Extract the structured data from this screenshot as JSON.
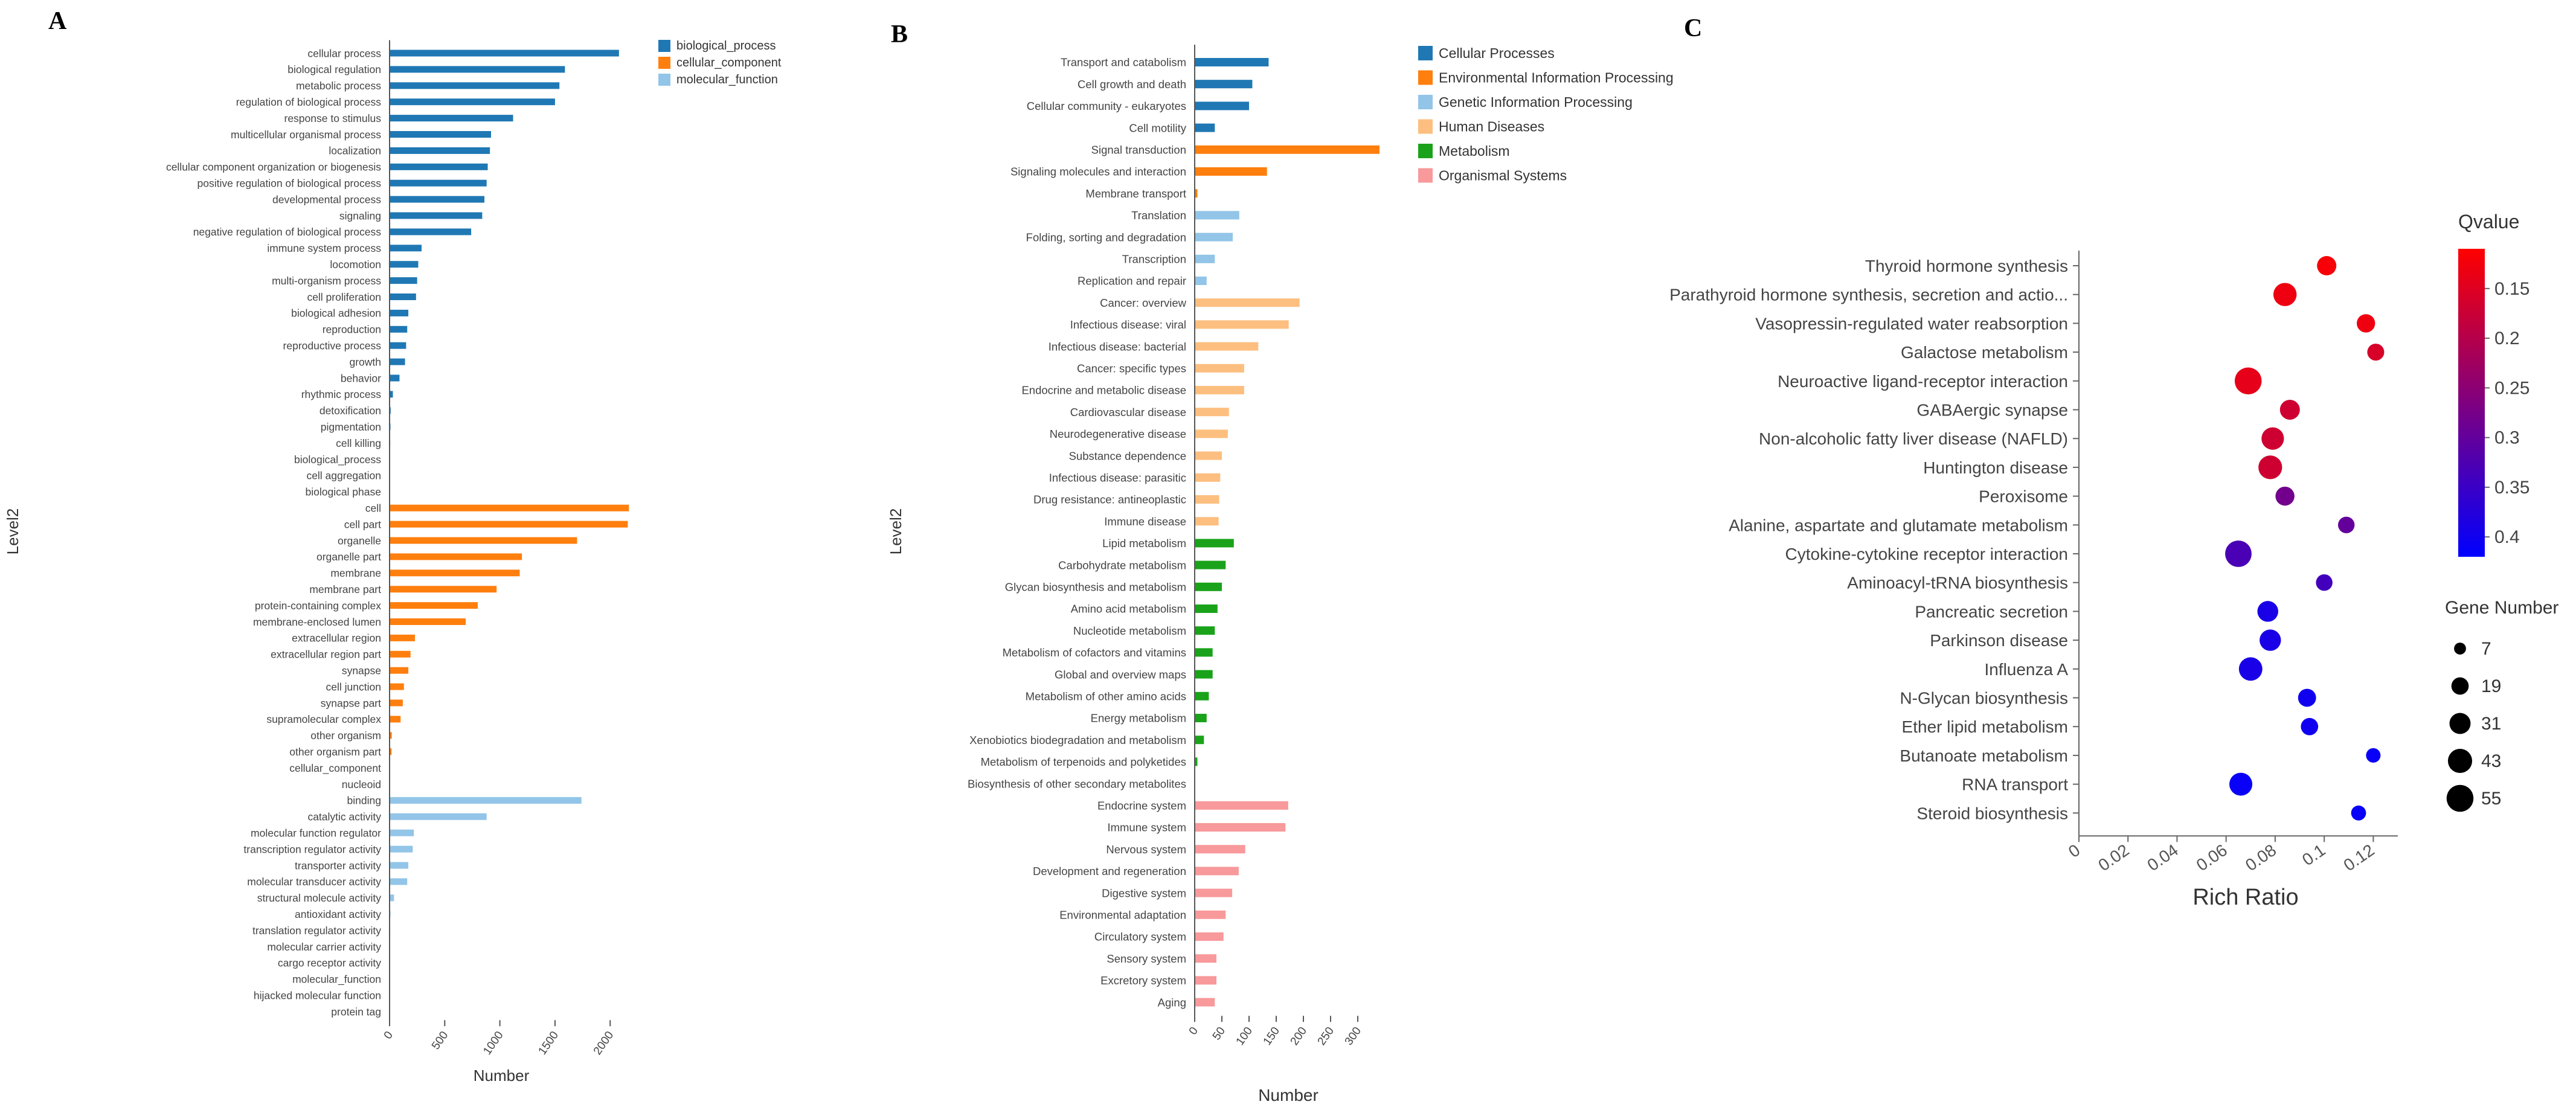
{
  "panels": {
    "A": {
      "letter": "A",
      "ylabel": "Level2",
      "xlabel": "Number",
      "xlim": [
        0,
        2300
      ],
      "ticks": [
        0,
        500,
        1000,
        1500,
        2000
      ],
      "legend": [
        {
          "name": "biological_process",
          "color": "#1f78b4"
        },
        {
          "name": "cellular_component",
          "color": "#ff7f0e"
        },
        {
          "name": "molecular_function",
          "color": "#92c5e8"
        }
      ]
    },
    "B": {
      "letter": "B",
      "ylabel": "Level2",
      "xlabel": "Number",
      "xlim": [
        0,
        340
      ],
      "ticks": [
        0,
        50,
        100,
        150,
        200,
        250,
        300
      ],
      "legend": [
        {
          "name": "Cellular Processes",
          "color": "#1f78b4"
        },
        {
          "name": "Environmental Information Processing",
          "color": "#ff7f0e"
        },
        {
          "name": "Genetic Information Processing",
          "color": "#92c5e8"
        },
        {
          "name": "Human Diseases",
          "color": "#fdbf7f"
        },
        {
          "name": "Metabolism",
          "color": "#1aa31a"
        },
        {
          "name": "Organismal Systems",
          "color": "#f8999b"
        }
      ]
    },
    "C": {
      "letter": "C",
      "xlabel": "Rich Ratio",
      "xlim": [
        0,
        0.13
      ],
      "ticks": [
        0,
        0.02,
        0.04,
        0.06,
        0.08,
        0.1,
        0.12
      ],
      "qvalue_title": "Qvalue",
      "qvalue_ticks": [
        0.15,
        0.2,
        0.25,
        0.3,
        0.35,
        0.4
      ],
      "qvalue_range": [
        0.11,
        0.42
      ],
      "colors": {
        "low": "#ff0000",
        "high": "#0000ff"
      },
      "gene_title": "Gene Number",
      "gene_sizes": [
        7,
        19,
        31,
        43,
        55
      ]
    }
  },
  "chart_data": [
    {
      "type": "bar",
      "orientation": "horizontal",
      "title": "",
      "xlabel": "Number",
      "ylabel": "Level2",
      "xlim": [
        0,
        2300
      ],
      "series": [
        {
          "name": "biological_process",
          "categories": [
            "cellular process",
            "biological regulation",
            "metabolic process",
            "regulation of biological process",
            "response to stimulus",
            "multicellular organismal process",
            "localization",
            "cellular component organization or biogenesis",
            "positive regulation of biological process",
            "developmental process",
            "signaling",
            "negative regulation of biological process",
            "immune system process",
            "locomotion",
            "multi-organism process",
            "cell proliferation",
            "biological adhesion",
            "reproduction",
            "reproductive process",
            "growth",
            "behavior",
            "rhythmic process",
            "detoxification",
            "pigmentation",
            "cell killing",
            "biological_process",
            "cell aggregation",
            "biological phase"
          ],
          "values": [
            2080,
            1590,
            1540,
            1500,
            1120,
            920,
            910,
            890,
            880,
            860,
            840,
            740,
            290,
            260,
            250,
            240,
            170,
            160,
            150,
            140,
            90,
            30,
            10,
            8,
            6,
            5,
            4,
            3
          ]
        },
        {
          "name": "cellular_component",
          "categories": [
            "cell",
            "cell part",
            "organelle",
            "organelle part",
            "membrane",
            "membrane part",
            "protein-containing complex",
            "membrane-enclosed lumen",
            "extracellular region",
            "extracellular region part",
            "synapse",
            "cell junction",
            "synapse part",
            "supramolecular complex",
            "other organism",
            "other organism part",
            "cellular_component",
            "nucleoid"
          ],
          "values": [
            2170,
            2160,
            1700,
            1200,
            1180,
            970,
            800,
            690,
            230,
            190,
            170,
            130,
            120,
            100,
            20,
            18,
            5,
            3
          ]
        },
        {
          "name": "molecular_function",
          "categories": [
            "binding",
            "catalytic activity",
            "molecular function regulator",
            "transcription regulator activity",
            "transporter activity",
            "molecular transducer activity",
            "structural molecule activity",
            "antioxidant activity",
            "translation regulator activity",
            "molecular carrier activity",
            "cargo receptor activity",
            "molecular_function",
            "hijacked molecular function",
            "protein tag"
          ],
          "values": [
            1740,
            880,
            220,
            210,
            170,
            160,
            40,
            8,
            6,
            5,
            4,
            3,
            2,
            2
          ]
        }
      ]
    },
    {
      "type": "bar",
      "orientation": "horizontal",
      "title": "",
      "xlabel": "Number",
      "ylabel": "Level2",
      "xlim": [
        0,
        340
      ],
      "series": [
        {
          "name": "Cellular Processes",
          "categories": [
            "Transport and catabolism",
            "Cell growth and death",
            "Cellular community - eukaryotes",
            "Cell motility"
          ],
          "values": [
            136,
            106,
            100,
            37
          ]
        },
        {
          "name": "Environmental Information Processing",
          "categories": [
            "Signal transduction",
            "Signaling molecules and interaction",
            "Membrane transport"
          ],
          "values": [
            340,
            133,
            5
          ]
        },
        {
          "name": "Genetic Information Processing",
          "categories": [
            "Translation",
            "Folding, sorting and degradation",
            "Transcription",
            "Replication and repair"
          ],
          "values": [
            82,
            70,
            37,
            22
          ]
        },
        {
          "name": "Human Diseases",
          "categories": [
            "Cancer: overview",
            "Infectious disease: viral",
            "Infectious disease: bacterial",
            "Cancer: specific types",
            "Endocrine and metabolic disease",
            "Cardiovascular disease",
            "Neurodegenerative disease",
            "Substance dependence",
            "Infectious disease: parasitic",
            "Drug resistance: antineoplastic",
            "Immune disease"
          ],
          "values": [
            193,
            173,
            117,
            91,
            91,
            63,
            61,
            50,
            47,
            45,
            44
          ]
        },
        {
          "name": "Metabolism",
          "categories": [
            "Lipid metabolism",
            "Carbohydrate metabolism",
            "Glycan biosynthesis and metabolism",
            "Amino acid metabolism",
            "Nucleotide metabolism",
            "Metabolism of cofactors and vitamins",
            "Global and overview maps",
            "Metabolism of other amino acids",
            "Energy metabolism",
            "Xenobiotics biodegradation and metabolism",
            "Metabolism of terpenoids and polyketides",
            "Biosynthesis of other secondary metabolites"
          ],
          "values": [
            72,
            57,
            50,
            42,
            37,
            33,
            33,
            26,
            22,
            17,
            5,
            1
          ]
        },
        {
          "name": "Organismal Systems",
          "categories": [
            "Endocrine system",
            "Immune system",
            "Nervous system",
            "Development and regeneration",
            "Digestive system",
            "Environmental adaptation",
            "Circulatory system",
            "Sensory system",
            "Excretory system",
            "Aging"
          ],
          "values": [
            172,
            167,
            93,
            81,
            69,
            57,
            53,
            40,
            40,
            37
          ]
        }
      ]
    },
    {
      "type": "scatter",
      "title": "",
      "xlabel": "Rich Ratio",
      "ylabel": "",
      "xlim": [
        0,
        0.13
      ],
      "size_legend": "Gene Number",
      "color_legend": "Qvalue",
      "points": [
        {
          "term": "Thyroid hormone synthesis",
          "rich": 0.101,
          "q": 0.12,
          "genes": 25
        },
        {
          "term": "Parathyroid hormone synthesis, secretion and actio...",
          "rich": 0.084,
          "q": 0.13,
          "genes": 39
        },
        {
          "term": "Vasopressin-regulated water reabsorption",
          "rich": 0.117,
          "q": 0.13,
          "genes": 22
        },
        {
          "term": "Galactose metabolism",
          "rich": 0.121,
          "q": 0.16,
          "genes": 18
        },
        {
          "term": "Neuroactive ligand-receptor interaction",
          "rich": 0.069,
          "q": 0.14,
          "genes": 55
        },
        {
          "term": "GABAergic synapse",
          "rich": 0.086,
          "q": 0.17,
          "genes": 27
        },
        {
          "term": "Non-alcoholic fatty liver disease (NAFLD)",
          "rich": 0.079,
          "q": 0.17,
          "genes": 36
        },
        {
          "term": "Huntington disease",
          "rich": 0.078,
          "q": 0.17,
          "genes": 41
        },
        {
          "term": "Peroxisome",
          "rich": 0.084,
          "q": 0.28,
          "genes": 24
        },
        {
          "term": "Alanine, aspartate and glutamate metabolism",
          "rich": 0.109,
          "q": 0.3,
          "genes": 17
        },
        {
          "term": "Cytokine-cytokine receptor interaction",
          "rich": 0.065,
          "q": 0.33,
          "genes": 53
        },
        {
          "term": "Aminoacyl-tRNA biosynthesis",
          "rich": 0.1,
          "q": 0.34,
          "genes": 17
        },
        {
          "term": "Pancreatic secretion",
          "rich": 0.077,
          "q": 0.39,
          "genes": 30
        },
        {
          "term": "Parkinson disease",
          "rich": 0.078,
          "q": 0.39,
          "genes": 32
        },
        {
          "term": "Influenza A",
          "rich": 0.07,
          "q": 0.39,
          "genes": 40
        },
        {
          "term": "N-Glycan biosynthesis",
          "rich": 0.093,
          "q": 0.4,
          "genes": 21
        },
        {
          "term": "Ether lipid metabolism",
          "rich": 0.094,
          "q": 0.4,
          "genes": 19
        },
        {
          "term": "Butanoate metabolism",
          "rich": 0.12,
          "q": 0.41,
          "genes": 12
        },
        {
          "term": "RNA transport",
          "rich": 0.066,
          "q": 0.41,
          "genes": 38
        },
        {
          "term": "Steroid biosynthesis",
          "rich": 0.114,
          "q": 0.41,
          "genes": 13
        }
      ]
    }
  ]
}
